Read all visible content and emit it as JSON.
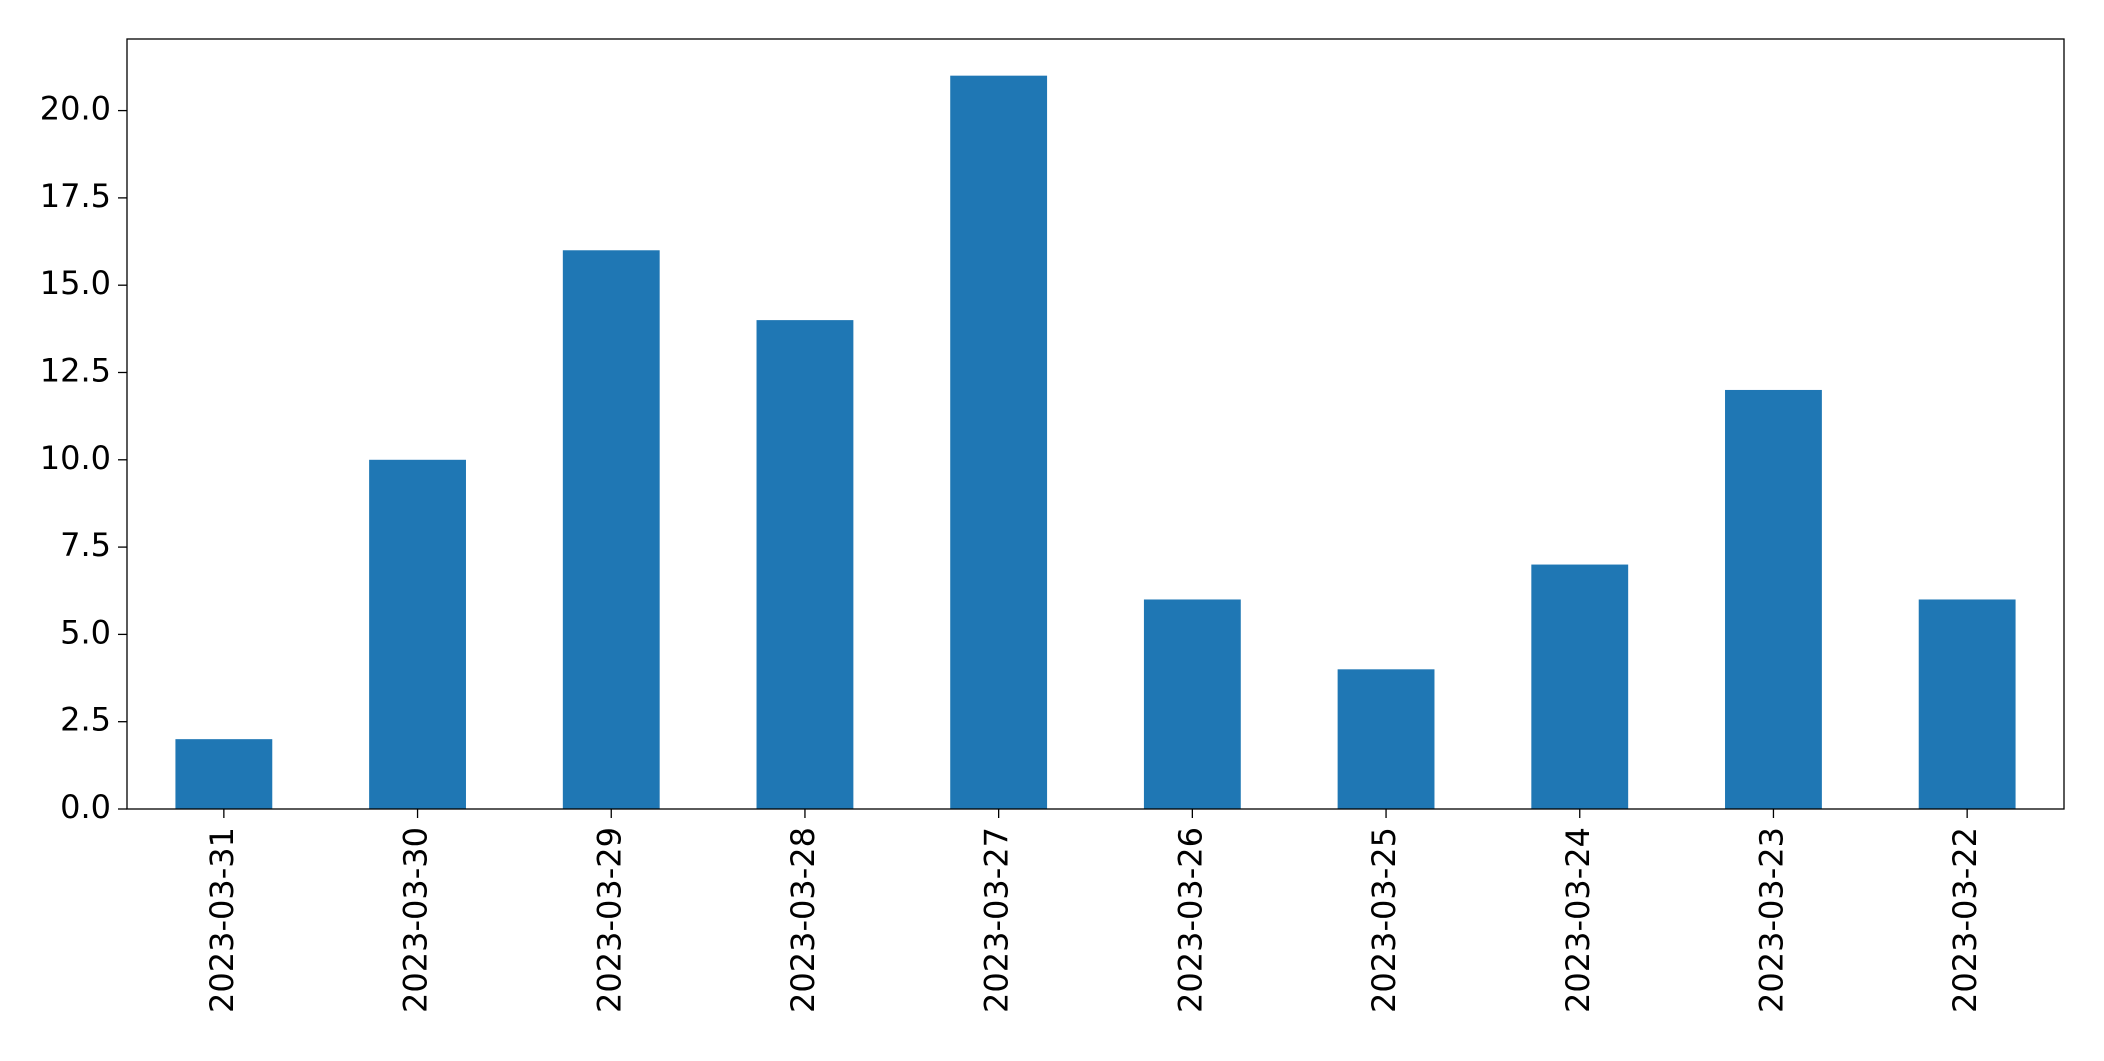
{
  "chart_data": {
    "type": "bar",
    "categories": [
      "2023-03-31",
      "2023-03-30",
      "2023-03-29",
      "2023-03-28",
      "2023-03-27",
      "2023-03-26",
      "2023-03-25",
      "2023-03-24",
      "2023-03-23",
      "2023-03-22"
    ],
    "values": [
      2,
      10,
      16,
      14,
      21,
      6,
      4,
      7,
      12,
      6
    ],
    "color": "#1f77b4",
    "ylim": [
      0,
      22.05
    ],
    "yticks": [
      {
        "value": 0,
        "label": "0.0"
      },
      2.5,
      {
        "value": 5,
        "label": "5.0"
      },
      7.5,
      {
        "value": 10,
        "label": "10.0"
      },
      12.5,
      {
        "value": 15,
        "label": "15.0"
      },
      17.5,
      {
        "value": 20,
        "label": "20.0"
      }
    ],
    "grid": false
  }
}
